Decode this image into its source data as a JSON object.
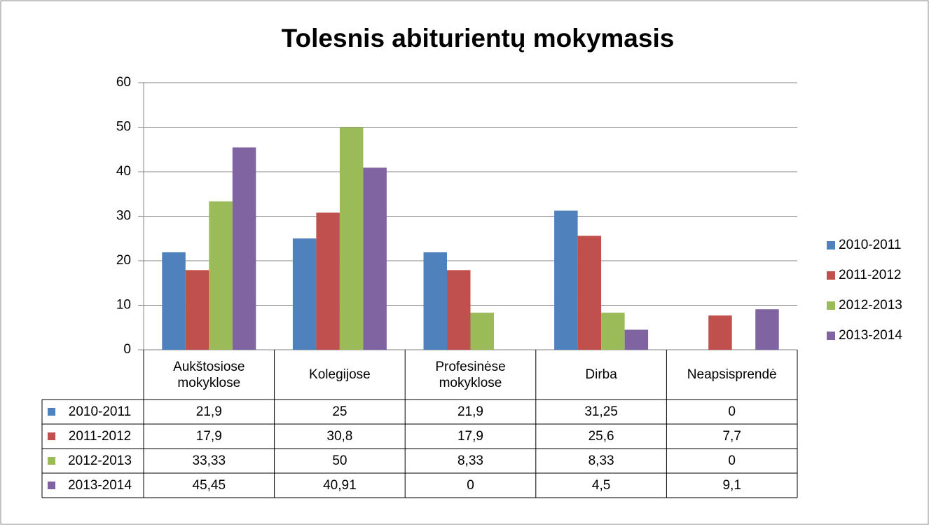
{
  "chart_data": {
    "type": "bar",
    "title": "Tolesnis abiturientų mokymasis",
    "categories": [
      "Aukštosiose mokyklose",
      "Kolegijose",
      "Profesinėse mokyklose",
      "Dirba",
      "Neapsisprendė"
    ],
    "series": [
      {
        "name": "2010-2011",
        "color": "#4f81bd",
        "values": [
          21.9,
          25,
          21.9,
          31.25,
          0
        ],
        "value_labels": [
          "21,9",
          "25",
          "21,9",
          "31,25",
          "0"
        ]
      },
      {
        "name": "2011-2012",
        "color": "#c0504d",
        "values": [
          17.9,
          30.8,
          17.9,
          25.6,
          7.7
        ],
        "value_labels": [
          "17,9",
          "30,8",
          "17,9",
          "25,6",
          "7,7"
        ]
      },
      {
        "name": "2012-2013",
        "color": "#9bbb59",
        "values": [
          33.33,
          50,
          8.33,
          8.33,
          0
        ],
        "value_labels": [
          "33,33",
          "50",
          "8,33",
          "8,33",
          "0"
        ]
      },
      {
        "name": "2013-2014",
        "color": "#8064a2",
        "values": [
          45.45,
          40.91,
          0,
          4.5,
          9.1
        ],
        "value_labels": [
          "45,45",
          "40,91",
          "0",
          "4,5",
          "9,1"
        ]
      }
    ],
    "ylim": [
      0,
      60
    ],
    "yticks": [
      0,
      10,
      20,
      30,
      40,
      50,
      60
    ],
    "grid": true,
    "legend": "right",
    "data_table": true
  }
}
